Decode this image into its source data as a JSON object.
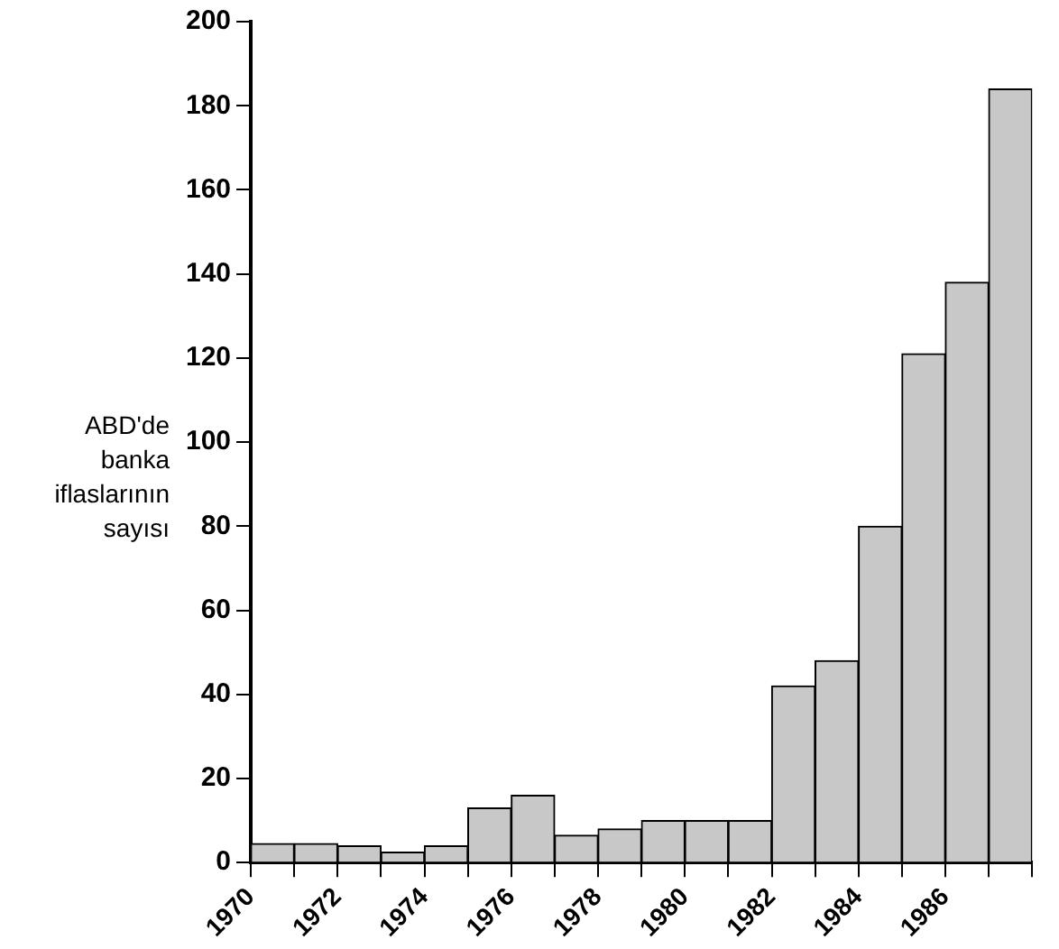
{
  "chart_data": {
    "type": "histogram",
    "ylabel": "ABD'de banka iflaslarının sayısı",
    "bins": [
      1970,
      1971,
      1972,
      1973,
      1974,
      1975,
      1976,
      1977,
      1978,
      1979,
      1980,
      1981,
      1982,
      1983,
      1984,
      1985,
      1986,
      1987,
      1988
    ],
    "values": [
      4.5,
      4.5,
      4,
      2.5,
      4,
      13,
      16,
      6.5,
      8,
      10,
      10,
      10,
      42,
      48,
      80,
      121,
      138,
      184
    ],
    "color": "#c8c8c8",
    "xlim": [
      1970,
      1988
    ],
    "xticks": [
      1970,
      {
        "value": 1971,
        "label": null
      },
      1972,
      {
        "value": 1973,
        "label": null
      },
      1974,
      {
        "value": 1975,
        "label": null
      },
      1976,
      {
        "value": 1977,
        "label": null
      },
      1978,
      {
        "value": 1979,
        "label": null
      },
      1980,
      {
        "value": 1981,
        "label": null
      },
      1982,
      {
        "value": 1983,
        "label": null
      },
      1984,
      {
        "value": 1985,
        "label": null
      },
      1986,
      {
        "value": 1987,
        "label": null
      },
      {
        "value": 1988,
        "label": null
      }
    ],
    "ylim": [
      0,
      200
    ],
    "yticks": [
      0,
      20,
      40,
      60,
      80,
      100,
      120,
      140,
      160,
      180,
      200
    ],
    "grid": false
  }
}
